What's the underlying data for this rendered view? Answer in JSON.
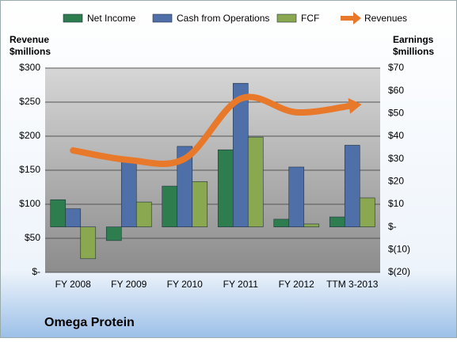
{
  "chart_data": {
    "type": "combo",
    "title": "Omega Protein",
    "y_label": [
      "Revenue",
      "$millions"
    ],
    "y2_label": [
      "Earnings",
      "$millions"
    ],
    "categories": [
      "FY 2008",
      "FY 2009",
      "FY 2010",
      "FY 2011",
      "FY 2012",
      "TTM 3-2013"
    ],
    "series": [
      {
        "name": "Net Income",
        "type": "bar",
        "axis": "y2",
        "color": "#2e7d4f",
        "values": [
          12,
          -6,
          18,
          34,
          3.4,
          4.4
        ]
      },
      {
        "name": "Cash from Operations",
        "type": "bar",
        "axis": "y2",
        "color": "#4f6fa8",
        "values": [
          8,
          29.5,
          35.5,
          63.3,
          26.4,
          36
        ]
      },
      {
        "name": "FCF",
        "type": "bar",
        "axis": "y2",
        "color": "#8aa84f",
        "values": [
          -14,
          11,
          20,
          39.6,
          1.3,
          12.8
        ]
      },
      {
        "name": "Revenues",
        "type": "line",
        "axis": "y",
        "color": "#e8782a",
        "values": [
          179,
          165,
          167,
          255,
          235,
          245
        ]
      }
    ],
    "ylim": [
      0,
      300
    ],
    "yticks": [
      {
        "value": 0,
        "label": "$-"
      },
      {
        "value": 50,
        "label": "$50"
      },
      {
        "value": 100,
        "label": "$100"
      },
      {
        "value": 150,
        "label": "$150"
      },
      {
        "value": 200,
        "label": "$200"
      },
      {
        "value": 250,
        "label": "$250"
      },
      {
        "value": 300,
        "label": "$300"
      }
    ],
    "y2lim": [
      -20,
      70
    ],
    "y2ticks": [
      {
        "value": -20,
        "label": "$(20)"
      },
      {
        "value": -10,
        "label": "$(10)"
      },
      {
        "value": 0,
        "label": "$-"
      },
      {
        "value": 10,
        "label": "$10"
      },
      {
        "value": 20,
        "label": "$20"
      },
      {
        "value": 30,
        "label": "$30"
      },
      {
        "value": 40,
        "label": "$40"
      },
      {
        "value": 50,
        "label": "$50"
      },
      {
        "value": 60,
        "label": "$60"
      },
      {
        "value": 70,
        "label": "$70"
      }
    ],
    "grid": true
  }
}
